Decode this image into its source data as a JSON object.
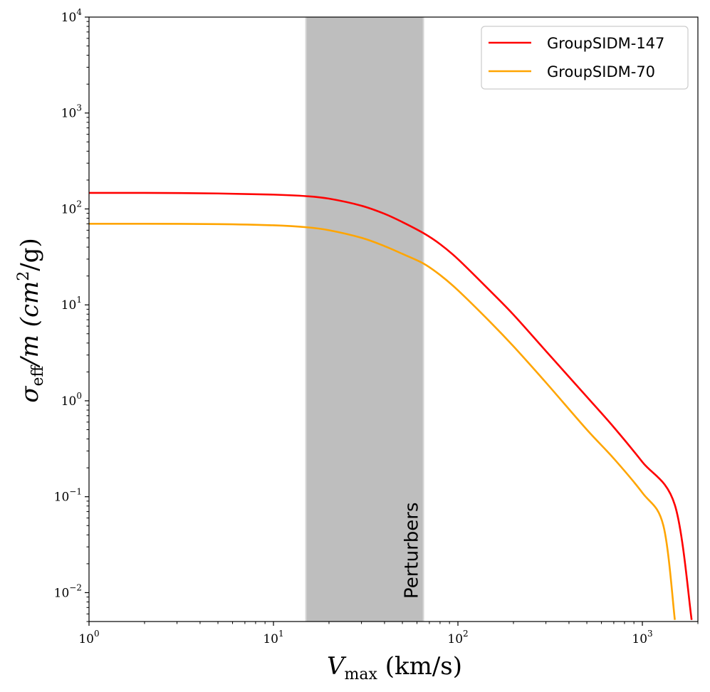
{
  "chart_data": {
    "type": "line",
    "xscale": "log",
    "yscale": "log",
    "xlim": [
      1,
      2000
    ],
    "ylim": [
      0.005,
      10000
    ],
    "xlabel": {
      "main": "V",
      "sub": "max",
      "unit": " (km/s)"
    },
    "ylabel": {
      "main": "σ",
      "sub": "eff",
      "mid": "/m (cm",
      "sup": "2",
      "tail": "/g)"
    },
    "x_ticks": [
      {
        "value": 1,
        "base": "10",
        "exp": "0"
      },
      {
        "value": 10,
        "base": "10",
        "exp": "1"
      },
      {
        "value": 100,
        "base": "10",
        "exp": "2"
      },
      {
        "value": 1000,
        "base": "10",
        "exp": "3"
      }
    ],
    "y_ticks": [
      {
        "value": 0.01,
        "base": "10",
        "exp": "−2"
      },
      {
        "value": 0.1,
        "base": "10",
        "exp": "−1"
      },
      {
        "value": 1,
        "base": "10",
        "exp": "0"
      },
      {
        "value": 10,
        "base": "10",
        "exp": "1"
      },
      {
        "value": 100,
        "base": "10",
        "exp": "2"
      },
      {
        "value": 1000,
        "base": "10",
        "exp": "3"
      },
      {
        "value": 10000,
        "base": "10",
        "exp": "4"
      }
    ],
    "shaded_band": {
      "x_range": [
        15,
        65
      ],
      "label": "Perturbers",
      "color": "#bebebe"
    },
    "legend_position": "top-right",
    "series": [
      {
        "name": "GroupSIDM-147",
        "color": "#ff0000",
        "x": [
          1,
          2,
          5,
          10,
          15,
          20,
          30,
          40,
          50,
          65,
          80,
          100,
          150,
          200,
          300,
          500,
          700,
          1000,
          1500,
          1850
        ],
        "y": [
          147,
          147,
          145,
          141,
          136,
          128,
          108,
          89,
          73,
          56,
          43,
          30,
          13.9,
          7.9,
          3.3,
          1.1,
          0.53,
          0.23,
          0.082,
          0.0052
        ]
      },
      {
        "name": "GroupSIDM-70",
        "color": "#ffa500",
        "x": [
          1,
          2,
          5,
          10,
          15,
          20,
          30,
          40,
          50,
          65,
          80,
          100,
          150,
          200,
          300,
          500,
          700,
          1000,
          1300,
          1500
        ],
        "y": [
          70,
          70,
          69.5,
          67.5,
          64.5,
          60,
          50,
          41,
          34,
          27,
          20.5,
          14.2,
          6.6,
          3.7,
          1.55,
          0.5,
          0.25,
          0.11,
          0.05,
          0.0052
        ]
      }
    ]
  }
}
